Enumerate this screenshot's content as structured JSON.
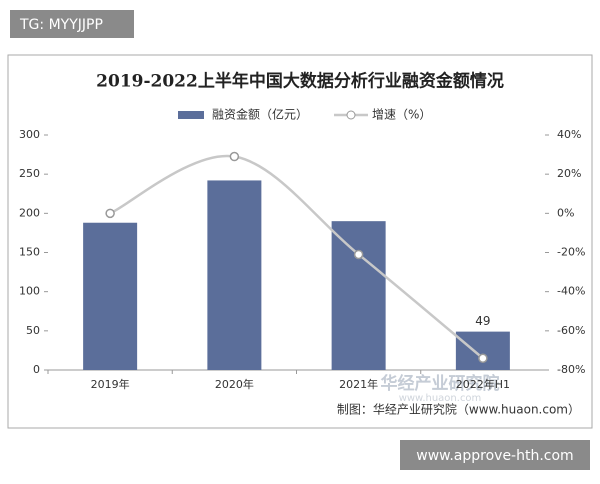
{
  "overlays": {
    "tag": "TG: MYYJJPP",
    "link": "www.approve-hth.com",
    "watermark": "华经产业研究院",
    "watermark_url": "www.huaon.com"
  },
  "chart_data": {
    "type": "bar",
    "title": "2019-2022上半年中国大数据分析行业融资金额情况",
    "categories": [
      "2019年",
      "2020年",
      "2021年",
      "2022年H1"
    ],
    "series": [
      {
        "name": "融资金额（亿元）",
        "type": "bar",
        "color": "#5b6e9a",
        "values": [
          188,
          242,
          190,
          49
        ],
        "value_labels": [
          null,
          null,
          null,
          "49"
        ]
      },
      {
        "name": "增速（%）",
        "type": "line",
        "axis": "y2",
        "color": "#c8c8c8",
        "values": [
          0,
          29,
          -21,
          -74
        ]
      }
    ],
    "ylim": [
      0,
      300
    ],
    "yticks": [
      0,
      50,
      100,
      150,
      200,
      250,
      300
    ],
    "y2lim": [
      -80,
      40
    ],
    "y2ticks": [
      {
        "value": -80,
        "label": "-80%"
      },
      {
        "value": -60,
        "label": "-60%"
      },
      {
        "value": -40,
        "label": "-40%"
      },
      {
        "value": -20,
        "label": "-20%"
      },
      {
        "value": 0,
        "label": "0%"
      },
      {
        "value": 20,
        "label": "20%"
      },
      {
        "value": 40,
        "label": "40%"
      }
    ],
    "grid": false,
    "legend": "top",
    "source": "制图：华经产业研究院（www.huaon.com）"
  }
}
